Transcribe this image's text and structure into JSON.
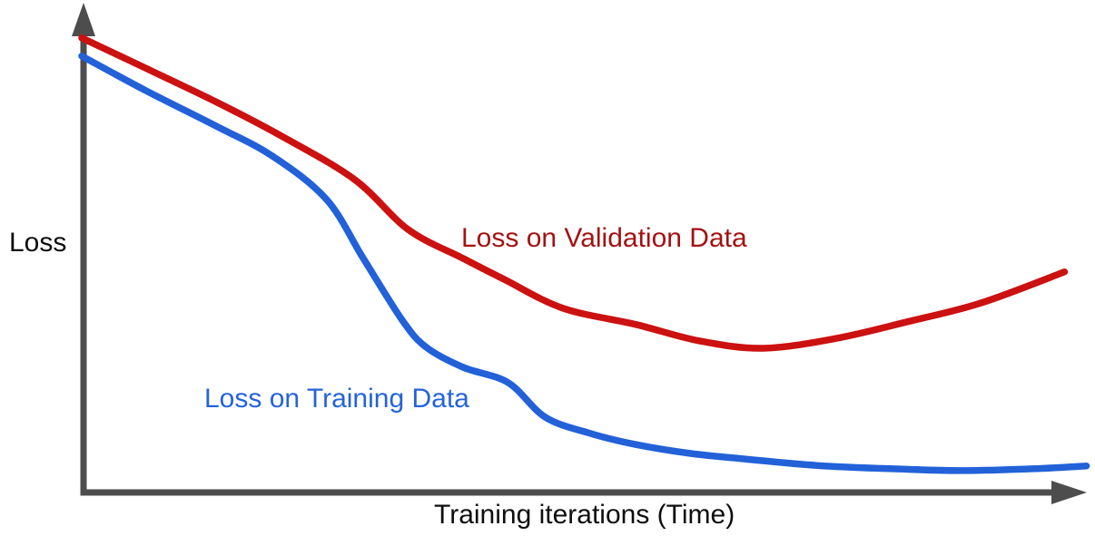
{
  "page": {
    "background": "#ffffff"
  },
  "chart": {
    "y_axis_label": "Loss",
    "x_axis_label": "Training iterations (Time)",
    "validation_label": "Loss on Validation Data",
    "training_label": "Loss on Training Data",
    "axis_color": "#4d4d4d",
    "text_color": "#0e0e0e",
    "validation_label_color": "#a31212",
    "training_label_color": "#2563d9",
    "validation_curve_color": "#cc1111",
    "training_curve_color": "#2261d8"
  },
  "chart_data": {
    "type": "line",
    "title": "",
    "xlabel": "Training iterations (Time)",
    "ylabel": "Loss",
    "xlim": [
      0,
      100.6
    ],
    "ylim": [
      0,
      1
    ],
    "grid": false,
    "legend": "inline labels next to each curve",
    "axes_style": "schematic arrows, no tick marks or numeric labels",
    "series": [
      {
        "name": "Loss on Validation Data",
        "color": "#cc1111",
        "label_color": "#a31212",
        "shape": "decreases to a minimum around x≈68 then rises (overfitting)",
        "points": [
          [
            0,
            0.977
          ],
          [
            6.4,
            0.912
          ],
          [
            13.6,
            0.838
          ],
          [
            20,
            0.766
          ],
          [
            27.3,
            0.673
          ],
          [
            32.7,
            0.565
          ],
          [
            38.2,
            0.503
          ],
          [
            42.3,
            0.458
          ],
          [
            48.2,
            0.396
          ],
          [
            55.5,
            0.361
          ],
          [
            61.8,
            0.326
          ],
          [
            68.2,
            0.31
          ],
          [
            75.5,
            0.331
          ],
          [
            82.7,
            0.367
          ],
          [
            90,
            0.407
          ],
          [
            98.4,
            0.474
          ]
        ]
      },
      {
        "name": "Loss on Training Data",
        "color": "#2261d8",
        "label_color": "#2563d9",
        "shape": "falls steeply then plateaus near zero with a slight late uptick",
        "points": [
          [
            0,
            0.938
          ],
          [
            6.4,
            0.864
          ],
          [
            13.6,
            0.786
          ],
          [
            19.1,
            0.723
          ],
          [
            24.5,
            0.63
          ],
          [
            28.2,
            0.503
          ],
          [
            32.1,
            0.37
          ],
          [
            34.5,
            0.312
          ],
          [
            38.2,
            0.269
          ],
          [
            42.7,
            0.236
          ],
          [
            46.4,
            0.162
          ],
          [
            50.9,
            0.127
          ],
          [
            55.5,
            0.103
          ],
          [
            60.9,
            0.084
          ],
          [
            66.4,
            0.072
          ],
          [
            73.6,
            0.058
          ],
          [
            80.9,
            0.051
          ],
          [
            88.2,
            0.047
          ],
          [
            95.5,
            0.051
          ],
          [
            100.6,
            0.057
          ]
        ]
      }
    ],
    "annotations": [
      "Validation loss curve labeled in dark red above the curve",
      "Training loss curve labeled in blue above the curve's tail"
    ]
  }
}
